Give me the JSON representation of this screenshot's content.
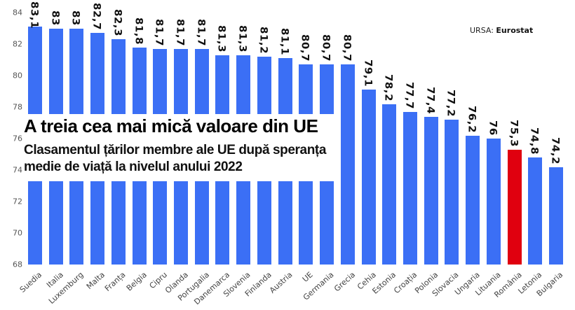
{
  "source": {
    "prefix": "URSA:",
    "name": "Eurostat"
  },
  "title": "A treia cea mai mică valoare din UE",
  "subtitle": "Clasamentul țărilor membre ale UE după speranța medie de viață la nivelul anului 2022",
  "colors": {
    "bar": "#3b6ff5",
    "highlight": "#e0000f",
    "text": "#111111"
  },
  "chart_data": {
    "type": "bar",
    "title": "A treia cea mai mică valoare din UE",
    "subtitle": "Clasamentul țărilor membre ale UE după speranța medie de viață la nivelul anului 2022",
    "source": "URSA: Eurostat",
    "xlabel": "",
    "ylabel": "",
    "ylim": [
      68,
      84
    ],
    "yticks": [
      68,
      70,
      72,
      74,
      76,
      78,
      80,
      82,
      84
    ],
    "grid": false,
    "legend": null,
    "categories": [
      "Suedia",
      "Italia",
      "Luxemburg",
      "Malta",
      "Franța",
      "Belgia",
      "Cipru",
      "Olanda",
      "Portugalia",
      "Danemarca",
      "Slovenia",
      "Finlanda",
      "Austria",
      "UE",
      "Germania",
      "Grecia",
      "Cehia",
      "Estonia",
      "Croația",
      "Polonia",
      "Slovacia",
      "Ungaria",
      "Lituania",
      "România",
      "Letonia",
      "Bulgaria"
    ],
    "values": [
      83.1,
      83,
      83,
      82.7,
      82.3,
      81.8,
      81.7,
      81.7,
      81.7,
      81.3,
      81.3,
      81.2,
      81.1,
      80.7,
      80.7,
      80.7,
      79.1,
      78.2,
      77.7,
      77.4,
      77.2,
      76.2,
      76,
      75.3,
      74.8,
      74.2
    ],
    "value_labels": [
      "83,1",
      "83",
      "83",
      "82,7",
      "82,3",
      "81,8",
      "81,7",
      "81,7",
      "81,7",
      "81,3",
      "81,3",
      "81,2",
      "81,1",
      "80,7",
      "80,7",
      "80,7",
      "79,1",
      "78,2",
      "77,7",
      "77,4",
      "77,2",
      "76,2",
      "76",
      "75,3",
      "74,8",
      "74,2"
    ],
    "highlight": "România"
  }
}
